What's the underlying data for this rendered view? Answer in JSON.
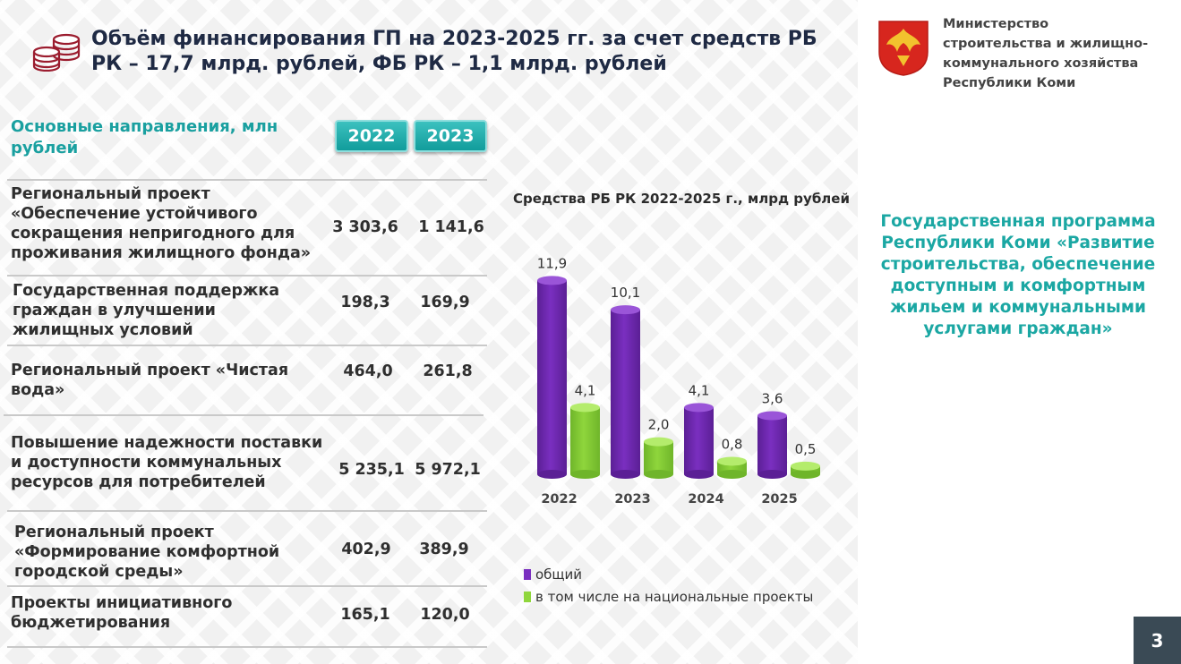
{
  "header": {
    "title": "Объём финансирования ГП на 2023-2025 гг. за счет средств РБ РК – 17,7 млрд. рублей, ФБ РК – 1,1 млрд. рублей",
    "icon": "coins-icon"
  },
  "ministry": {
    "name": "Министерство\nстроительства и жилищно-\nкоммунального хозяйства\nРеспублики Коми",
    "emblem": "coat-of-arms-icon"
  },
  "table": {
    "heading": "Основные направления, млн рублей",
    "years": [
      "2022",
      "2023"
    ],
    "rows": [
      {
        "name": "Региональный проект «Обеспечение устойчивого сокращения непригодного для проживания жилищного фонда»",
        "v2022": "3 303,6",
        "v2023": "1 141,6"
      },
      {
        "name": "Государственная поддержка граждан в улучшении жилищных условий",
        "v2022": "198,3",
        "v2023": "169,9"
      },
      {
        "name": "Региональный проект «Чистая вода»",
        "v2022": "464,0",
        "v2023": "261,8"
      },
      {
        "name": "Повышение надежности поставки и доступности коммунальных ресурсов для потребителей",
        "v2022": "5 235,1",
        "v2023": "5 972,1"
      },
      {
        "name": "Региональный проект «Формирование комфортной городской среды»",
        "v2022": "402,9",
        "v2023": "389,9"
      },
      {
        "name": "Проекты инициативного бюджетирования",
        "v2022": "165,1",
        "v2023": "120,0"
      }
    ]
  },
  "chart_data": {
    "type": "bar",
    "title": "Средства РБ РК 2022-2025 г., млрд рублей",
    "categories": [
      "2022",
      "2023",
      "2024",
      "2025"
    ],
    "series": [
      {
        "name": "общий",
        "values": [
          11.9,
          10.1,
          4.1,
          3.6
        ],
        "labels": [
          "11,9",
          "10,1",
          "4,1",
          "3,6"
        ],
        "color": "#7a2fc0"
      },
      {
        "name": "в том числе на национальные проекты",
        "values": [
          4.1,
          2.0,
          0.8,
          0.5
        ],
        "labels": [
          "4,1",
          "2,0",
          "0,8",
          "0,5"
        ],
        "color": "#8fd63c"
      }
    ],
    "ylim": [
      0,
      12
    ],
    "grid": false,
    "legend": "bottom"
  },
  "program": {
    "text": "Государственная программа Республики Коми «Развитие строительства, обеспечение доступным и комфортным жильем и коммунальными услугами граждан»"
  },
  "page": {
    "number": "3"
  },
  "colors": {
    "accent": "#1aa0a0",
    "total": "#7a2fc0",
    "national": "#8fd63c",
    "dark": "#3a4a55"
  }
}
